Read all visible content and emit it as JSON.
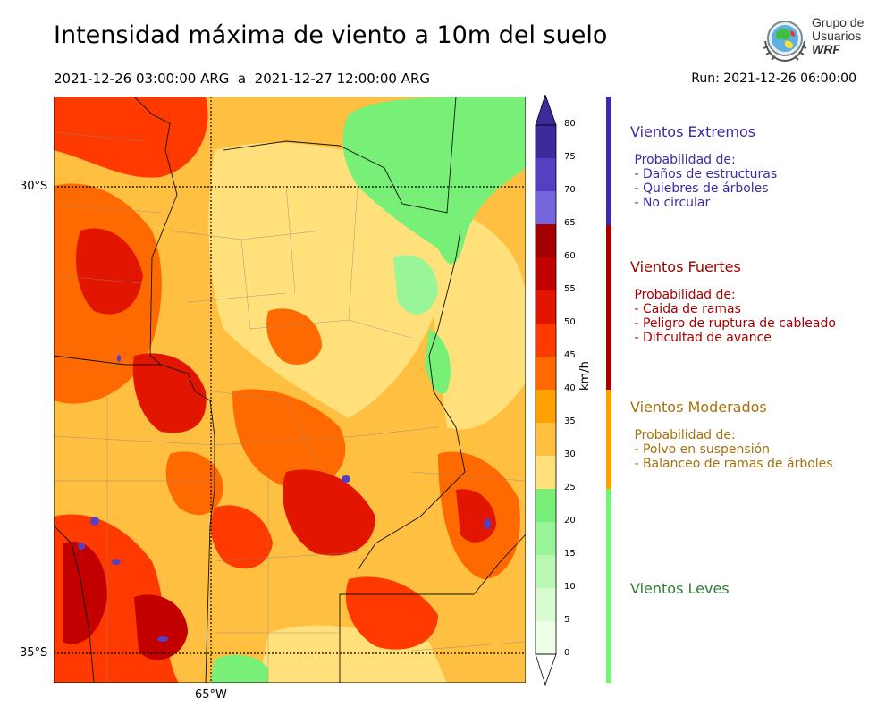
{
  "title": "Intensidad máxima de viento a 10m del suelo",
  "period": "2021-12-26 03:00:00 ARG  a  2021-12-27 12:00:00 ARG",
  "run": "Run: 2021-12-26 06:00:00",
  "logo": {
    "line1": "Grupo de",
    "line2": "Usuarios",
    "line3": "WRF"
  },
  "map": {
    "lat_labels": [
      "30°S",
      "35°S"
    ],
    "lon_labels": [
      "65°W"
    ]
  },
  "colorbar": {
    "unit": "km/h",
    "ticks": [
      "80",
      "75",
      "70",
      "65",
      "60",
      "55",
      "50",
      "45",
      "40",
      "35",
      "30",
      "25",
      "20",
      "15",
      "10",
      "5",
      "0"
    ],
    "colors": [
      "#3f2a9c",
      "#5540c4",
      "#7565dc",
      "#a50000",
      "#c20000",
      "#e21500",
      "#ff3a00",
      "#ff6a00",
      "#ffa200",
      "#ffc040",
      "#ffe07a",
      "#78f078",
      "#98f598",
      "#b8f8b0",
      "#d8fcd0",
      "#eeffe8"
    ]
  },
  "categories": [
    {
      "title": "Vientos Extremos",
      "color": "#3c2aa6",
      "bar_color": "#3c2aa6",
      "lines": [
        " Probabilidad de:",
        " - Daños de estructuras",
        " - Quiebres de árboles",
        " - No circular"
      ]
    },
    {
      "title": "Vientos Fuertes",
      "color": "#a30000",
      "bar_color": "#a30000",
      "lines": [
        " Probabilidad de:",
        " - Caida de ramas",
        " - Peligro de ruptura de cableado",
        " - Dificultad de avance"
      ]
    },
    {
      "title": "Vientos Moderados",
      "color": "#a8700b",
      "bar_color": "#ff9e00",
      "lines": [
        " Probabilidad de:",
        " - Polvo en suspensión",
        " - Balanceo de ramas de árboles"
      ]
    },
    {
      "title": "Vientos Leves",
      "color": "#2e7d32",
      "bar_color": "#78f078",
      "lines": []
    }
  ]
}
